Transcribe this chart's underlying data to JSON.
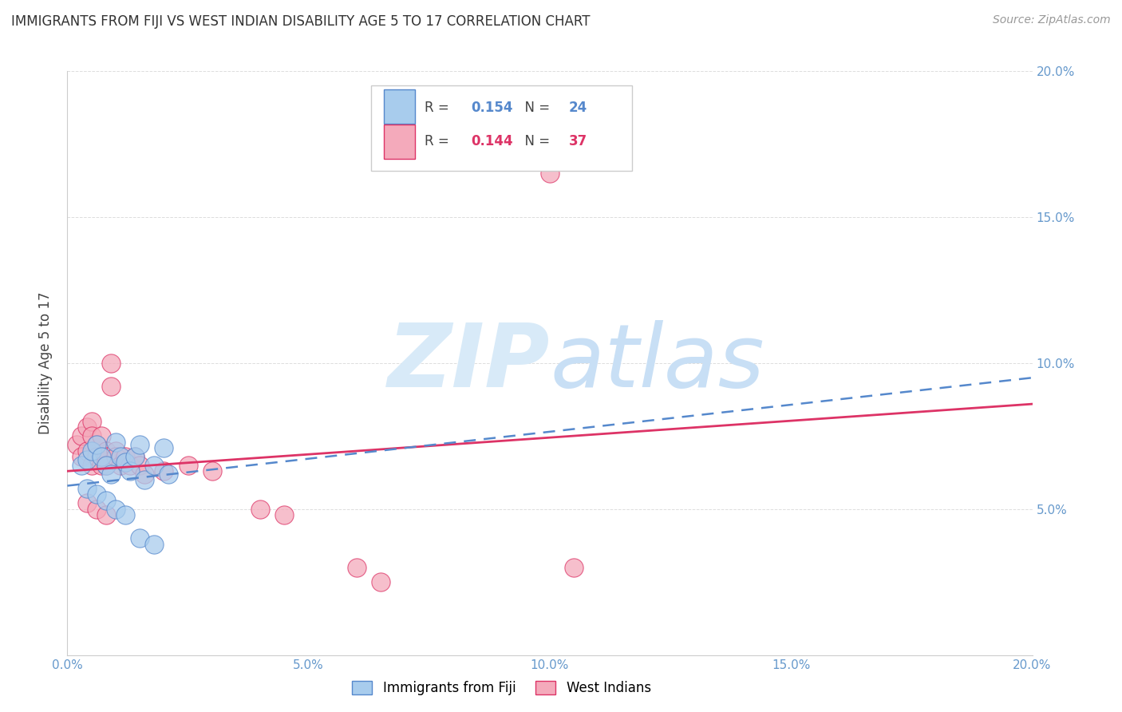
{
  "title": "IMMIGRANTS FROM FIJI VS WEST INDIAN DISABILITY AGE 5 TO 17 CORRELATION CHART",
  "source": "Source: ZipAtlas.com",
  "ylabel": "Disability Age 5 to 17",
  "xlim": [
    0.0,
    0.2
  ],
  "ylim": [
    0.0,
    0.2
  ],
  "xticks": [
    0.0,
    0.05,
    0.1,
    0.15,
    0.2
  ],
  "yticks": [
    0.05,
    0.1,
    0.15,
    0.2
  ],
  "xticklabels": [
    "0.0%",
    "5.0%",
    "10.0%",
    "15.0%",
    "20.0%"
  ],
  "yticklabels": [
    "5.0%",
    "10.0%",
    "15.0%",
    "20.0%"
  ],
  "fiji_R": 0.154,
  "fiji_N": 24,
  "westindian_R": 0.144,
  "westindian_N": 37,
  "fiji_color": "#A8CCED",
  "westindian_color": "#F4AABB",
  "fiji_line_color": "#5588CC",
  "westindian_line_color": "#DD3366",
  "fiji_scatter": [
    [
      0.003,
      0.065
    ],
    [
      0.004,
      0.067
    ],
    [
      0.005,
      0.07
    ],
    [
      0.006,
      0.072
    ],
    [
      0.007,
      0.068
    ],
    [
      0.008,
      0.065
    ],
    [
      0.009,
      0.062
    ],
    [
      0.01,
      0.073
    ],
    [
      0.011,
      0.068
    ],
    [
      0.012,
      0.066
    ],
    [
      0.013,
      0.063
    ],
    [
      0.014,
      0.068
    ],
    [
      0.015,
      0.072
    ],
    [
      0.016,
      0.06
    ],
    [
      0.018,
      0.065
    ],
    [
      0.02,
      0.071
    ],
    [
      0.021,
      0.062
    ],
    [
      0.004,
      0.057
    ],
    [
      0.006,
      0.055
    ],
    [
      0.008,
      0.053
    ],
    [
      0.01,
      0.05
    ],
    [
      0.012,
      0.048
    ],
    [
      0.015,
      0.04
    ],
    [
      0.018,
      0.038
    ]
  ],
  "westindian_scatter": [
    [
      0.002,
      0.072
    ],
    [
      0.003,
      0.075
    ],
    [
      0.003,
      0.068
    ],
    [
      0.004,
      0.078
    ],
    [
      0.004,
      0.07
    ],
    [
      0.005,
      0.08
    ],
    [
      0.005,
      0.075
    ],
    [
      0.005,
      0.065
    ],
    [
      0.006,
      0.072
    ],
    [
      0.006,
      0.068
    ],
    [
      0.007,
      0.075
    ],
    [
      0.007,
      0.065
    ],
    [
      0.008,
      0.07
    ],
    [
      0.008,
      0.068
    ],
    [
      0.008,
      0.065
    ],
    [
      0.009,
      0.092
    ],
    [
      0.009,
      0.1
    ],
    [
      0.01,
      0.07
    ],
    [
      0.01,
      0.068
    ],
    [
      0.011,
      0.065
    ],
    [
      0.012,
      0.068
    ],
    [
      0.013,
      0.065
    ],
    [
      0.014,
      0.068
    ],
    [
      0.015,
      0.065
    ],
    [
      0.016,
      0.062
    ],
    [
      0.02,
      0.063
    ],
    [
      0.025,
      0.065
    ],
    [
      0.03,
      0.063
    ],
    [
      0.004,
      0.052
    ],
    [
      0.006,
      0.05
    ],
    [
      0.008,
      0.048
    ],
    [
      0.04,
      0.05
    ],
    [
      0.045,
      0.048
    ],
    [
      0.06,
      0.03
    ],
    [
      0.065,
      0.025
    ],
    [
      0.1,
      0.165
    ],
    [
      0.105,
      0.03
    ]
  ],
  "background_color": "#FFFFFF",
  "watermark_color": "#D8EAF8",
  "grid_color": "#DDDDDD",
  "tick_color": "#6699CC"
}
